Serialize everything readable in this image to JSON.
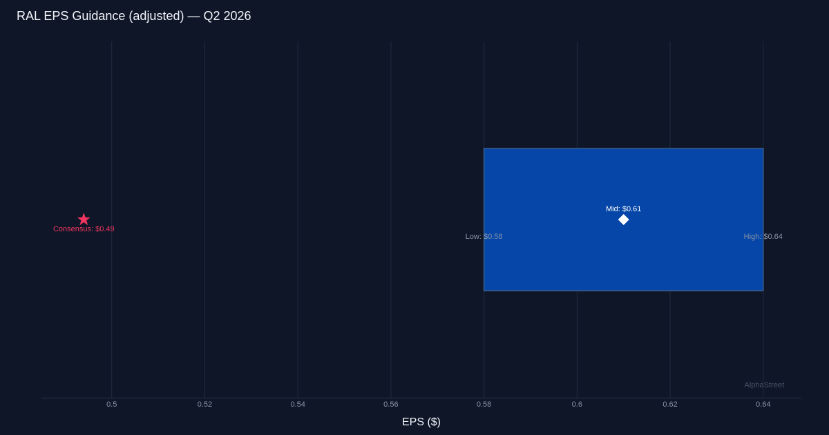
{
  "chart_data": {
    "type": "range",
    "title": "RAL EPS Guidance (adjusted) — Q2 2026",
    "x_label": "EPS ($)",
    "watermark": "AlphaStreet",
    "xlim": [
      0.4849,
      0.6482
    ],
    "xticks": [
      0.5,
      0.52,
      0.54,
      0.56,
      0.58,
      0.6,
      0.62,
      0.64
    ],
    "grid": true,
    "values": {
      "low": 0.58,
      "mid": 0.61,
      "high": 0.64,
      "consensus": 0.494
    },
    "value_labels": {
      "low": "Low: $0.58",
      "mid": "Mid: $0.61",
      "high": "High: $0.64",
      "consensus": "Consensus: $0.49"
    },
    "colors": {
      "range": "#0546a8",
      "mid": "#ffffff",
      "consensus": "#f0365f"
    }
  }
}
